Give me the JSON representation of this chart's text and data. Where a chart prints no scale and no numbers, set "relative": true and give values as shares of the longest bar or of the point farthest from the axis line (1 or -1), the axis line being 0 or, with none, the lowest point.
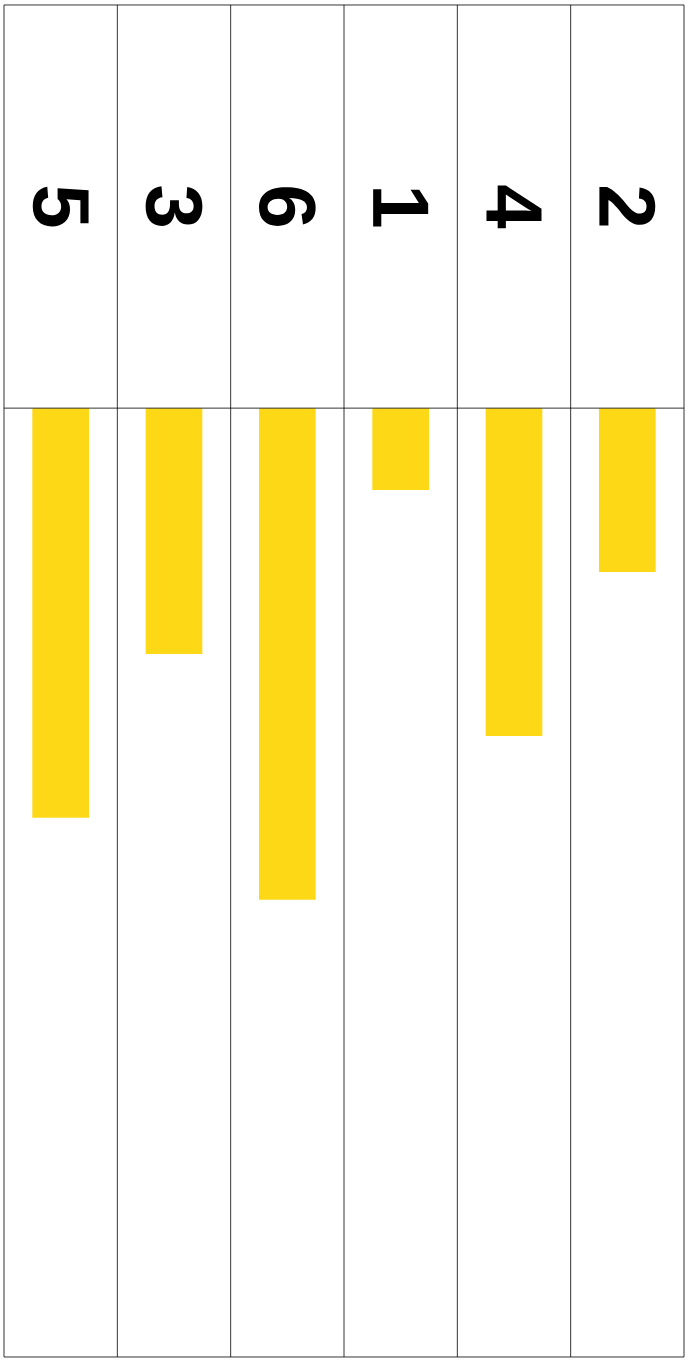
{
  "chart_data": {
    "type": "bar",
    "relative": true,
    "categories": [
      "5",
      "3",
      "6",
      "1",
      "4",
      "2"
    ],
    "values": [
      -0.8333,
      -0.5,
      -1,
      -0.1667,
      -0.6667,
      -0.3333
    ],
    "color": "#fcd817"
  }
}
